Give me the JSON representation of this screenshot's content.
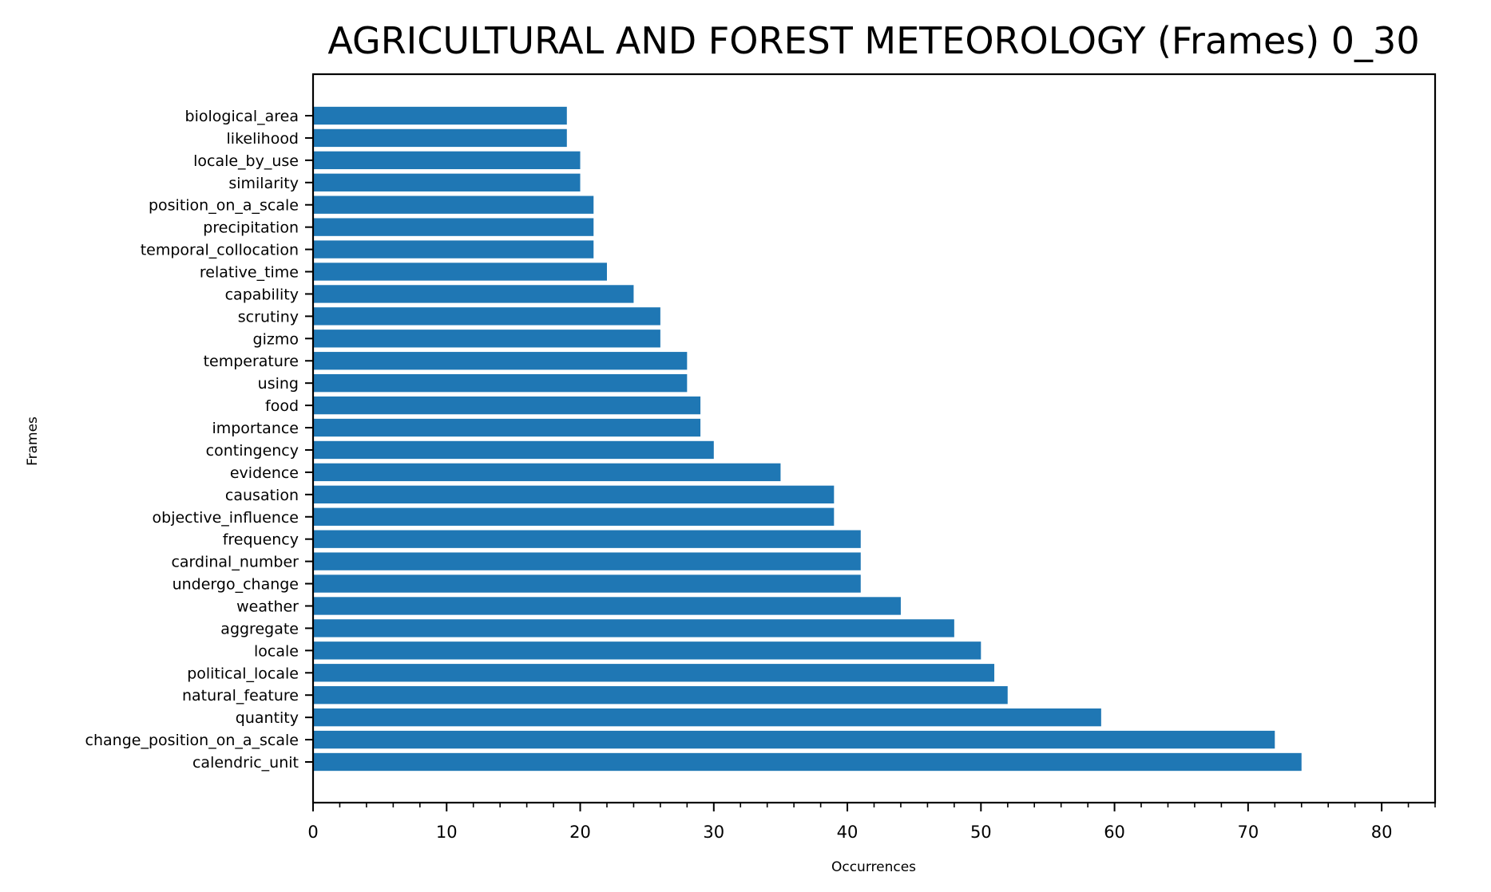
{
  "chart_data": {
    "type": "bar",
    "orientation": "horizontal",
    "title": "AGRICULTURAL AND FOREST METEOROLOGY (Frames) 0_30",
    "xlabel": "Occurrences",
    "ylabel": "Frames",
    "xlim": [
      0,
      84
    ],
    "xticks": [
      0,
      10,
      20,
      30,
      40,
      50,
      60,
      70,
      80
    ],
    "minor_tick_step": 2,
    "grid": false,
    "legend": "none",
    "bar_color": "#1f77b4",
    "categories": [
      "biological_area",
      "likelihood",
      "locale_by_use",
      "similarity",
      "position_on_a_scale",
      "precipitation",
      "temporal_collocation",
      "relative_time",
      "capability",
      "scrutiny",
      "gizmo",
      "temperature",
      "using",
      "food",
      "importance",
      "contingency",
      "evidence",
      "causation",
      "objective_influence",
      "frequency",
      "cardinal_number",
      "undergo_change",
      "weather",
      "aggregate",
      "locale",
      "political_locale",
      "natural_feature",
      "quantity",
      "change_position_on_a_scale",
      "calendric_unit"
    ],
    "values": [
      19,
      19,
      20,
      20,
      21,
      21,
      21,
      22,
      24,
      26,
      26,
      28,
      28,
      29,
      29,
      30,
      35,
      39,
      39,
      41,
      41,
      41,
      44,
      48,
      50,
      51,
      52,
      59,
      72,
      74
    ]
  }
}
